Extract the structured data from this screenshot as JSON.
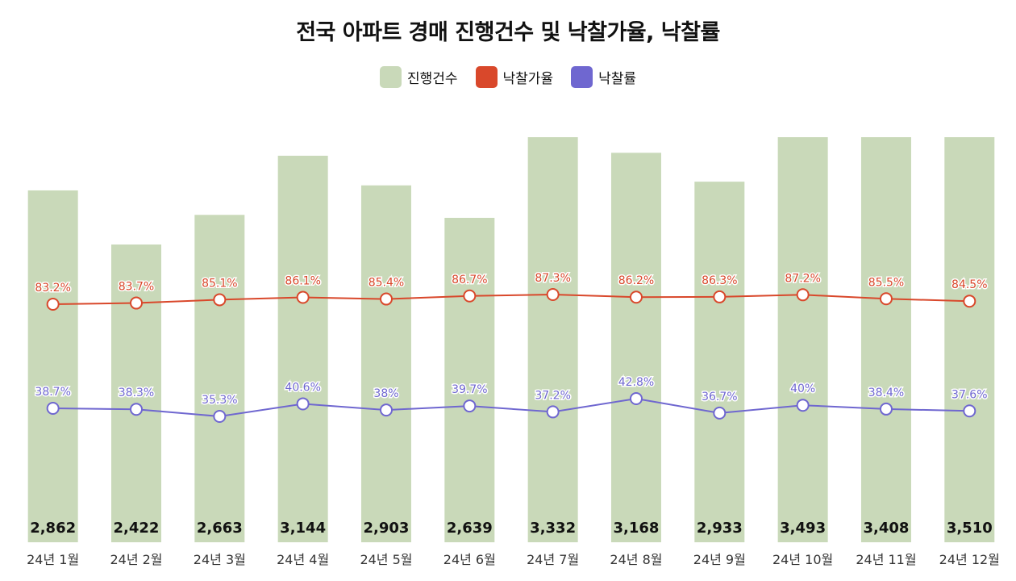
{
  "chart_data": {
    "type": "bar",
    "title": "전국 아파트 경매 진행건수 및 낙찰가율, 낙찰률",
    "categories": [
      "24년 1월",
      "24년 2월",
      "24년 3월",
      "24년 4월",
      "24년 5월",
      "24년 6월",
      "24년 7월",
      "24년 8월",
      "24년 9월",
      "24년 10월",
      "24년 11월",
      "24년 12월"
    ],
    "series": [
      {
        "name": "진행건수",
        "type": "bar",
        "color": "#c9d9b9",
        "values": [
          2862,
          2422,
          2663,
          3144,
          2903,
          2639,
          3332,
          3168,
          2933,
          3493,
          3408,
          3510
        ],
        "labels": [
          "2,862",
          "2,422",
          "2,663",
          "3,144",
          "2,903",
          "2,639",
          "3,332",
          "3,168",
          "2,933",
          "3,493",
          "3,408",
          "3,510"
        ]
      },
      {
        "name": "낙찰가율",
        "type": "line",
        "color": "#d9482b",
        "values": [
          83.2,
          83.7,
          85.1,
          86.1,
          85.4,
          86.7,
          87.3,
          86.2,
          86.3,
          87.2,
          85.5,
          84.5
        ],
        "labels": [
          "83.2%",
          "83.7%",
          "85.1%",
          "86.1%",
          "85.4%",
          "86.7%",
          "87.3%",
          "86.2%",
          "86.3%",
          "87.2%",
          "85.5%",
          "84.5%"
        ]
      },
      {
        "name": "낙찰률",
        "type": "line",
        "color": "#6f67d0",
        "values": [
          38.7,
          38.3,
          35.3,
          40.6,
          38,
          39.7,
          37.2,
          42.8,
          36.7,
          40,
          38.4,
          37.6
        ],
        "labels": [
          "38.7%",
          "38.3%",
          "35.3%",
          "40.6%",
          "38%",
          "39.7%",
          "37.2%",
          "42.8%",
          "36.7%",
          "40%",
          "38.4%",
          "37.6%"
        ]
      }
    ],
    "bar_axis_max": 3144,
    "legend_position": "top-center",
    "grid": false,
    "axes_visible": false
  }
}
